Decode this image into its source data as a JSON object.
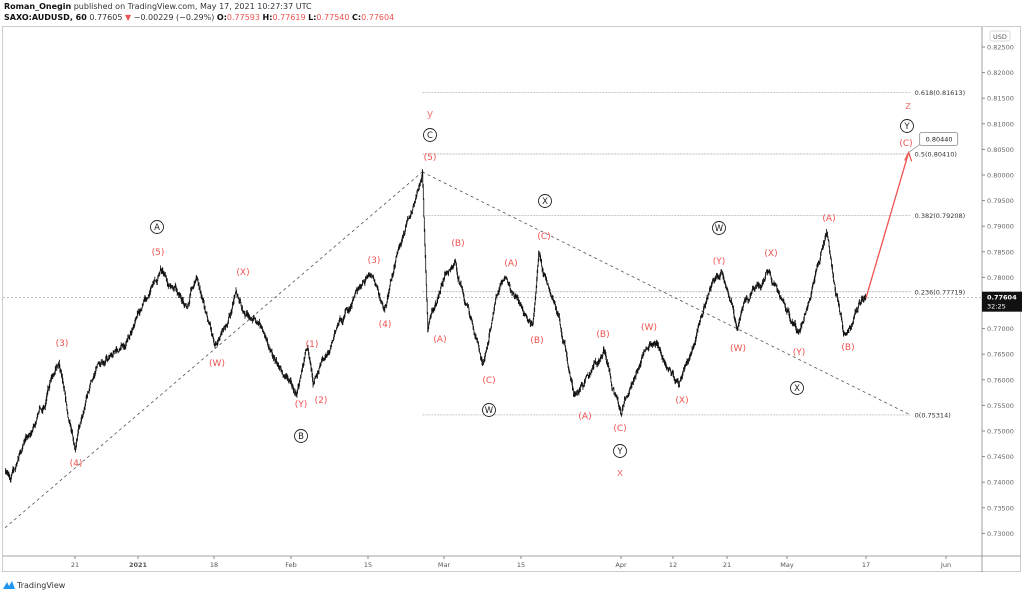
{
  "header": {
    "author": "Roman_Onegin",
    "published": "published on TradingView.com, May 17, 2021 10:27:37 UTC",
    "symbol": "SAXO:AUDUSD, 60",
    "last": "0.77605",
    "change": "−0.00229 (−0.29%)",
    "o_label": "O:",
    "o": "0.77593",
    "h_label": "H:",
    "h": "0.77619",
    "l_label": "L:",
    "l": "0.77540",
    "c_label": "C:",
    "c": "0.77604",
    "down_icon": "triangle-down-icon"
  },
  "footer": {
    "brand": "TradingView"
  },
  "colors": {
    "wave": "#ef5350",
    "degree": "#f08080",
    "price": "#111111",
    "axis": "#555555"
  },
  "chart_data": {
    "type": "line",
    "currency": "USD",
    "ylim": [
      0.7265,
      0.8275
    ],
    "y_ticks": [
      "0.82500",
      "0.82000",
      "0.81500",
      "0.81000",
      "0.80500",
      "0.80000",
      "0.79500",
      "0.79000",
      "0.78500",
      "0.78000",
      "0.77000",
      "0.76500",
      "0.76000",
      "0.75500",
      "0.75000",
      "0.74500",
      "0.74000",
      "0.73500",
      "0.73000"
    ],
    "x_ticks": [
      "21",
      "2021",
      "18",
      "Feb",
      "15",
      "Mar",
      "15",
      "Apr",
      "12",
      "21",
      "May",
      "17",
      "Jun"
    ],
    "last_price_label": "0.77604",
    "countdown": "32:25",
    "series": [
      {
        "points": [
          [
            "2020-12-08",
            0.742
          ],
          [
            "2020-12-09",
            0.7405
          ],
          [
            "2020-12-14",
            0.753
          ],
          [
            "2020-12-18",
            0.7635
          ],
          [
            "2020-12-21",
            0.7463
          ],
          [
            "2020-12-24",
            0.76
          ],
          [
            "2020-12-31",
            0.77
          ],
          [
            "2021-01-06",
            0.7818
          ],
          [
            "2021-01-12",
            0.774
          ],
          [
            "2021-01-14",
            0.78
          ],
          [
            "2021-01-18",
            0.7668
          ],
          [
            "2021-01-22",
            0.7775
          ],
          [
            "2021-01-26",
            0.771
          ],
          [
            "2021-01-28",
            0.766
          ],
          [
            "2021-02-02",
            0.757
          ],
          [
            "2021-02-04",
            0.7665
          ],
          [
            "2021-02-05",
            0.759
          ],
          [
            "2021-02-10",
            0.772
          ],
          [
            "2021-02-16",
            0.78
          ],
          [
            "2021-02-18",
            0.7737
          ],
          [
            "2021-02-22",
            0.79
          ],
          [
            "2021-02-25",
            0.8006
          ],
          [
            "2021-02-26",
            0.7697
          ],
          [
            "2021-03-03",
            0.7833
          ],
          [
            "2021-03-08",
            0.7629
          ],
          [
            "2021-03-12",
            0.78
          ],
          [
            "2021-03-17",
            0.771
          ],
          [
            "2021-03-18",
            0.785
          ],
          [
            "2021-03-24",
            0.757
          ],
          [
            "2021-03-29",
            0.766
          ],
          [
            "2021-04-01",
            0.7532
          ],
          [
            "2021-04-07",
            0.767
          ],
          [
            "2021-04-13",
            0.759
          ],
          [
            "2021-04-20",
            0.7815
          ],
          [
            "2021-04-23",
            0.77
          ],
          [
            "2021-04-29",
            0.7815
          ],
          [
            "2021-05-05",
            0.769
          ],
          [
            "2021-05-10",
            0.7889
          ],
          [
            "2021-05-13",
            0.769
          ],
          [
            "2021-05-17",
            0.776
          ]
        ]
      }
    ],
    "projection": {
      "from": [
        "2021-05-17",
        0.776
      ],
      "to": [
        "2021-05-25",
        0.8044
      ],
      "label": "0.80440"
    },
    "trendlines": [
      [
        [
          "2020-12-08",
          0.7311
        ],
        [
          "2021-02-25",
          0.8006
        ]
      ],
      [
        [
          "2021-02-25",
          0.8006
        ],
        [
          "2021-05-25",
          0.7533
        ]
      ]
    ],
    "fib_start": "2021-02-25",
    "fib_end": "2021-05-25",
    "fib_levels": [
      {
        "price": 0.81613,
        "label": "0.618(0.81613)"
      },
      {
        "price": 0.8041,
        "label": "0.5(0.80410)"
      },
      {
        "price": 0.79208,
        "label": "0.382(0.79208)"
      },
      {
        "price": 0.77719,
        "label": "0.236(0.77719)"
      },
      {
        "price": 0.75314,
        "label": "0(0.75314)"
      }
    ],
    "wave_labels": [
      "(3)",
      "(4)",
      "A",
      "(5)",
      "(X)",
      "(W)",
      "(Y)",
      "(2)",
      "(1)",
      "B",
      "(3)",
      "(4)",
      "y",
      "C",
      "(5)",
      "(A)",
      "(B)",
      "(C)",
      "W",
      "(A)",
      "(B)",
      "(C)",
      "X",
      "(A)",
      "(B)",
      "(C)",
      "Y",
      "x",
      "(W)",
      "(X)",
      "(Y)",
      "W",
      "(W)",
      "(X)",
      "(Y)",
      "X",
      "(A)",
      "(B)",
      "z",
      "Y",
      "(C)"
    ]
  }
}
